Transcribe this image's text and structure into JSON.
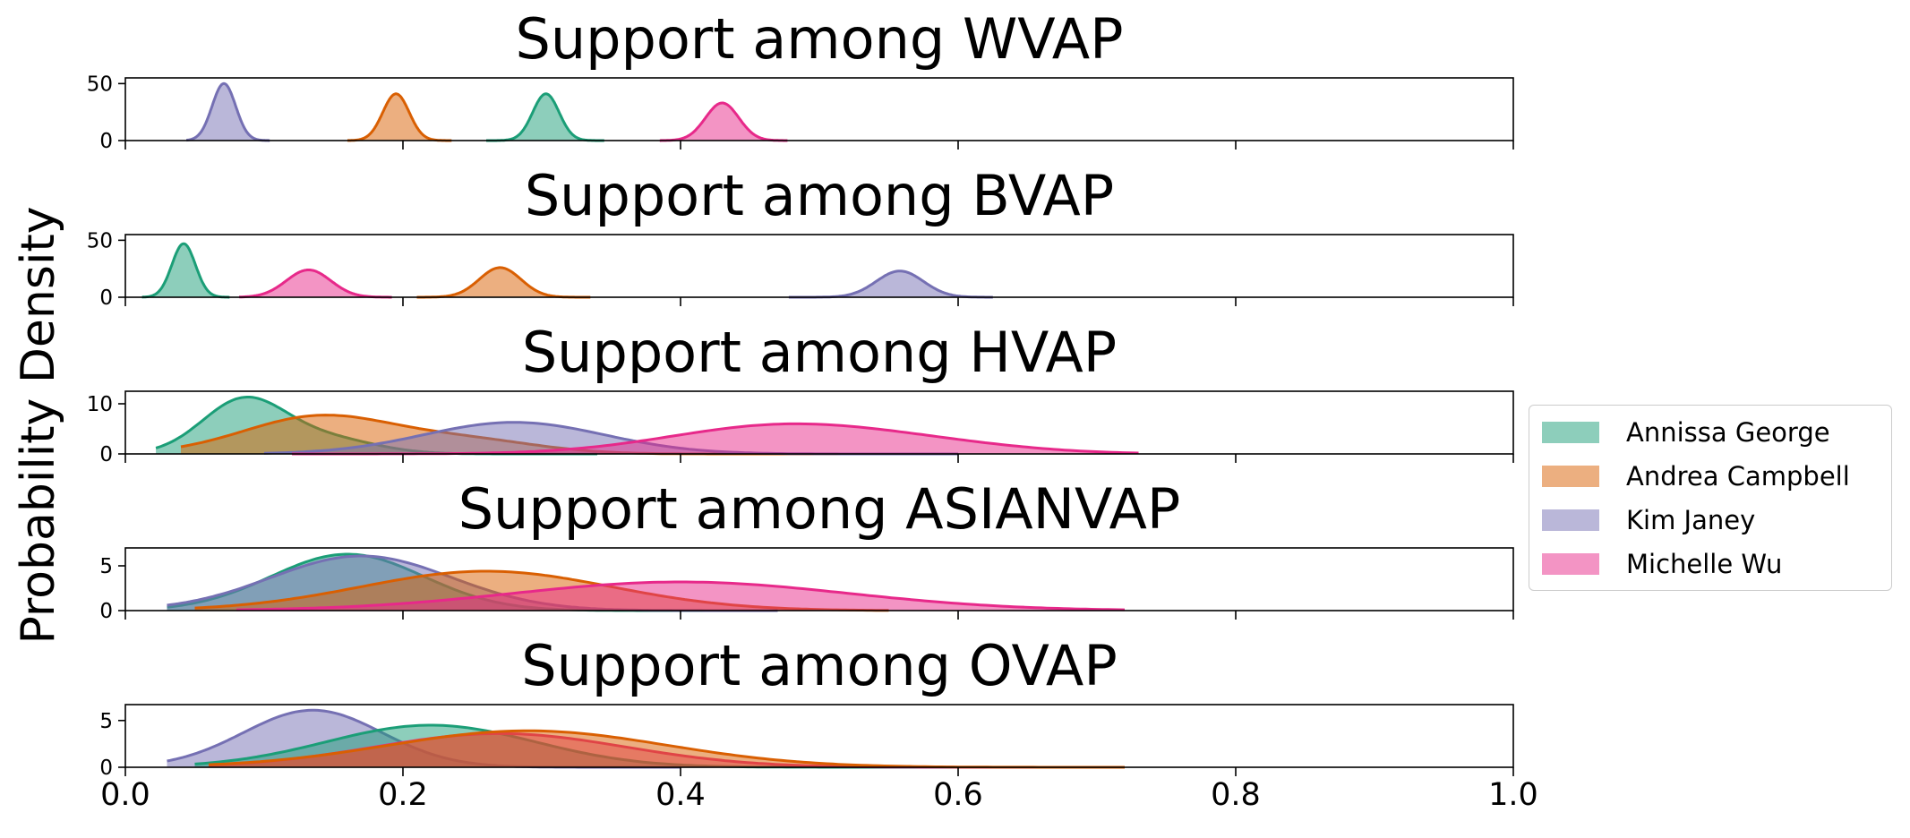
{
  "chart_data": {
    "type": "area",
    "ylabel": "Probability Density",
    "xlim": [
      0.0,
      1.0
    ],
    "x_ticks": [
      "0.0",
      "0.2",
      "0.4",
      "0.6",
      "0.8",
      "1.0"
    ],
    "legend_placement": "center-right",
    "legend": [
      {
        "name": "Annissa George",
        "color": "#1b9e77"
      },
      {
        "name": "Andrea Campbell",
        "color": "#d95f02"
      },
      {
        "name": "Kim Janey",
        "color": "#7570b3"
      },
      {
        "name": "Michelle Wu",
        "color": "#e7298a"
      }
    ],
    "panels": [
      {
        "title": "Support among WVAP",
        "ylim": [
          0,
          55
        ],
        "y_ticks": [
          "0",
          "50"
        ],
        "series": [
          {
            "name": "Kim Janey",
            "peaks": [
              {
                "mean": 0.071,
                "sd": 0.0085,
                "height": 50
              }
            ],
            "range": [
              0.044,
              0.104
            ]
          },
          {
            "name": "Andrea Campbell",
            "peaks": [
              {
                "mean": 0.195,
                "sd": 0.0095,
                "height": 41
              }
            ],
            "range": [
              0.16,
              0.235
            ]
          },
          {
            "name": "Annissa George",
            "peaks": [
              {
                "mean": 0.303,
                "sd": 0.0095,
                "height": 41
              }
            ],
            "range": [
              0.26,
              0.345
            ]
          },
          {
            "name": "Michelle Wu",
            "peaks": [
              {
                "mean": 0.43,
                "sd": 0.012,
                "height": 33
              }
            ],
            "range": [
              0.385,
              0.477
            ]
          }
        ]
      },
      {
        "title": "Support among BVAP",
        "ylim": [
          0,
          55
        ],
        "y_ticks": [
          "0",
          "50"
        ],
        "series": [
          {
            "name": "Annissa George",
            "peaks": [
              {
                "mean": 0.042,
                "sd": 0.0085,
                "height": 47
              }
            ],
            "range": [
              0.012,
              0.075
            ]
          },
          {
            "name": "Michelle Wu",
            "peaks": [
              {
                "mean": 0.132,
                "sd": 0.016,
                "height": 24
              }
            ],
            "range": [
              0.082,
              0.192
            ]
          },
          {
            "name": "Andrea Campbell",
            "peaks": [
              {
                "mean": 0.27,
                "sd": 0.015,
                "height": 26
              }
            ],
            "range": [
              0.21,
              0.335
            ]
          },
          {
            "name": "Kim Janey",
            "peaks": [
              {
                "mean": 0.558,
                "sd": 0.017,
                "height": 23
              }
            ],
            "range": [
              0.478,
              0.625
            ]
          }
        ]
      },
      {
        "title": "Support among HVAP",
        "ylim": [
          0,
          12.5
        ],
        "y_ticks": [
          "0",
          "10"
        ],
        "series": [
          {
            "name": "Annissa George",
            "peaks": [
              {
                "mean": 0.085,
                "sd": 0.03,
                "height": 10.6
              },
              {
                "mean": 0.145,
                "sd": 0.035,
                "height": 3.0
              }
            ],
            "range": [
              0.022,
              0.34
            ]
          },
          {
            "name": "Andrea Campbell",
            "peaks": [
              {
                "mean": 0.14,
                "sd": 0.055,
                "height": 7.5
              },
              {
                "mean": 0.25,
                "sd": 0.05,
                "height": 2.5
              }
            ],
            "range": [
              0.04,
              0.53
            ]
          },
          {
            "name": "Kim Janey",
            "peaks": [
              {
                "mean": 0.28,
                "sd": 0.065,
                "height": 6.3
              }
            ],
            "range": [
              0.1,
              0.6
            ]
          },
          {
            "name": "Michelle Wu",
            "peaks": [
              {
                "mean": 0.47,
                "sd": 0.08,
                "height": 5.5
              },
              {
                "mean": 0.58,
                "sd": 0.07,
                "height": 1.5
              }
            ],
            "range": [
              0.12,
              0.73
            ]
          }
        ]
      },
      {
        "title": "Support among ASIANVAP",
        "ylim": [
          0,
          7
        ],
        "y_ticks": [
          "0",
          "5"
        ],
        "series": [
          {
            "name": "Annissa George",
            "peaks": [
              {
                "mean": 0.16,
                "sd": 0.055,
                "height": 6.3
              }
            ],
            "range": [
              0.03,
              0.45
            ]
          },
          {
            "name": "Kim Janey",
            "peaks": [
              {
                "mean": 0.17,
                "sd": 0.065,
                "height": 6.1
              }
            ],
            "range": [
              0.03,
              0.47
            ]
          },
          {
            "name": "Andrea Campbell",
            "peaks": [
              {
                "mean": 0.26,
                "sd": 0.09,
                "height": 4.4
              }
            ],
            "range": [
              0.05,
              0.55
            ]
          },
          {
            "name": "Michelle Wu",
            "peaks": [
              {
                "mean": 0.4,
                "sd": 0.12,
                "height": 3.2
              }
            ],
            "range": [
              0.08,
              0.72
            ]
          }
        ]
      },
      {
        "title": "Support among OVAP",
        "ylim": [
          0,
          6.7
        ],
        "y_ticks": [
          "0",
          "5"
        ],
        "series": [
          {
            "name": "Kim Janey",
            "peaks": [
              {
                "mean": 0.135,
                "sd": 0.05,
                "height": 6.1
              }
            ],
            "range": [
              0.03,
              0.4
            ]
          },
          {
            "name": "Annissa George",
            "peaks": [
              {
                "mean": 0.22,
                "sd": 0.075,
                "height": 4.5
              }
            ],
            "range": [
              0.05,
              0.6
            ]
          },
          {
            "name": "Michelle Wu",
            "peaks": [
              {
                "mean": 0.27,
                "sd": 0.09,
                "height": 3.6
              }
            ],
            "range": [
              0.06,
              0.7
            ]
          },
          {
            "name": "Andrea Campbell",
            "peaks": [
              {
                "mean": 0.29,
                "sd": 0.1,
                "height": 3.9
              }
            ],
            "range": [
              0.06,
              0.72
            ]
          }
        ]
      }
    ]
  }
}
